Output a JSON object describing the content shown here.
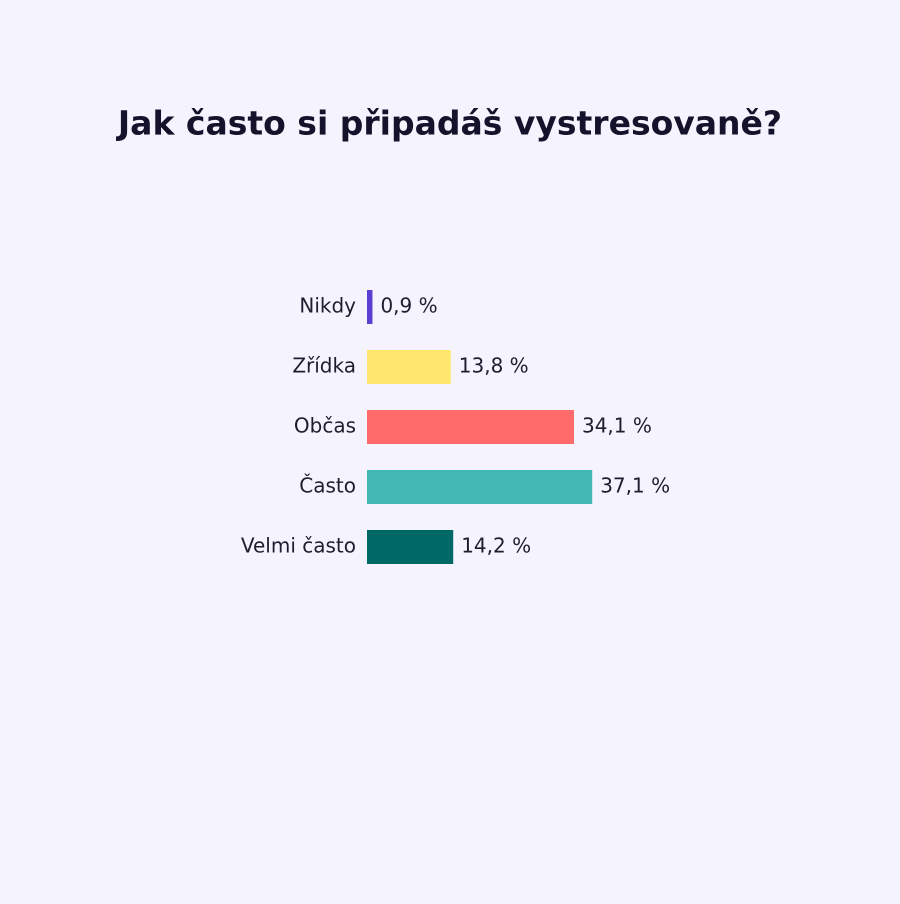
{
  "chart_data": {
    "type": "bar",
    "orientation": "horizontal",
    "title": "Jak často si připadáš vystresovaně?",
    "categories": [
      "Nikdy",
      "Zřídka",
      "Občas",
      "Často",
      "Velmi často"
    ],
    "values": [
      0.9,
      13.8,
      34.1,
      37.1,
      14.2
    ],
    "value_labels": [
      "0,9 %",
      "13,8 %",
      "34,1 %",
      "37,1 %",
      "14,2 %"
    ],
    "colors": [
      "#5b3fd1",
      "#ffe66d",
      "#ff6b6b",
      "#42b8b5",
      "#006866"
    ]
  }
}
